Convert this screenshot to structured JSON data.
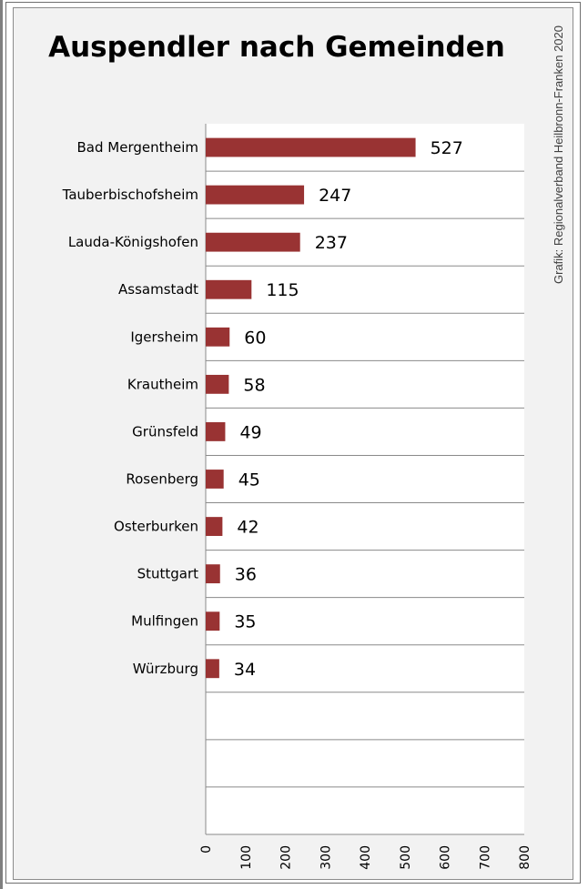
{
  "chart_data": {
    "type": "bar",
    "orientation": "horizontal",
    "title": "Auspendler nach Gemeinden",
    "credit": "Grafik: Regionalverband Heilbronn-Franken 2020",
    "categories": [
      "Bad Mergentheim",
      "Tauberbischofsheim",
      "Lauda-Königshofen",
      "Assamstadt",
      "Igersheim",
      "Krautheim",
      "Grünsfeld",
      "Rosenberg",
      "Osterburken",
      "Stuttgart",
      "Mulfingen",
      "Würzburg"
    ],
    "values": [
      527,
      247,
      237,
      115,
      60,
      58,
      49,
      45,
      42,
      36,
      35,
      34
    ],
    "slots": 15,
    "xlim": [
      0,
      800
    ],
    "xticks": [
      0,
      100,
      200,
      300,
      400,
      500,
      600,
      700,
      800
    ],
    "grid": true,
    "bar_color": "#993333"
  }
}
